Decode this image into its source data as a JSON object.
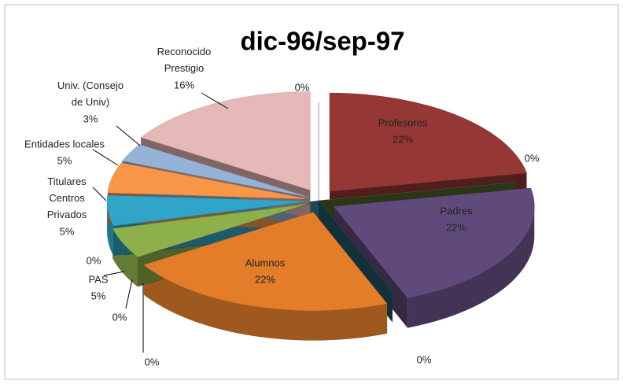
{
  "chart_data": {
    "type": "pie3d",
    "title": "dic-96/sep-97",
    "slices": [
      {
        "name": "Profesores",
        "value": 22,
        "value_label": "22%",
        "color": "#953735"
      },
      {
        "name": null,
        "value": 0,
        "value_label": "0%",
        "color": "#4f6228"
      },
      {
        "name": "Padres",
        "value": 22,
        "value_label": "22%",
        "color": "#604a7b"
      },
      {
        "name": null,
        "value": 0,
        "value_label": "0%",
        "color": "#215967"
      },
      {
        "name": "Alumnos",
        "value": 22,
        "value_label": "22%",
        "color": "#e37d2a"
      },
      {
        "name": null,
        "value": 0,
        "value_label": "0%",
        "color": "#7f3f1a"
      },
      {
        "name": null,
        "value": 0,
        "value_label": "0%",
        "color": "#772c2a"
      },
      {
        "name": "PAS",
        "value": 5,
        "value_label": "5%",
        "color": "#8db04a"
      },
      {
        "name": null,
        "value": 0,
        "value_label": "0%",
        "color": "#31859c"
      },
      {
        "name": "Titulares Centros Privados",
        "value": 5,
        "value_label": "5%",
        "color": "#31a5c8"
      },
      {
        "name": "Entidades locales",
        "value": 5,
        "value_label": "5%",
        "color": "#f79646"
      },
      {
        "name": "Univ. (Consejo de Univ)",
        "value": 3,
        "value_label": "3%",
        "color": "#95b3d7"
      },
      {
        "name": "Reconocido Prestigio",
        "value": 16,
        "value_label": "16%",
        "color": "#e6b9b8"
      },
      {
        "name": null,
        "value": 0,
        "value_label": "0%",
        "color": "#8c8c8c"
      }
    ]
  }
}
